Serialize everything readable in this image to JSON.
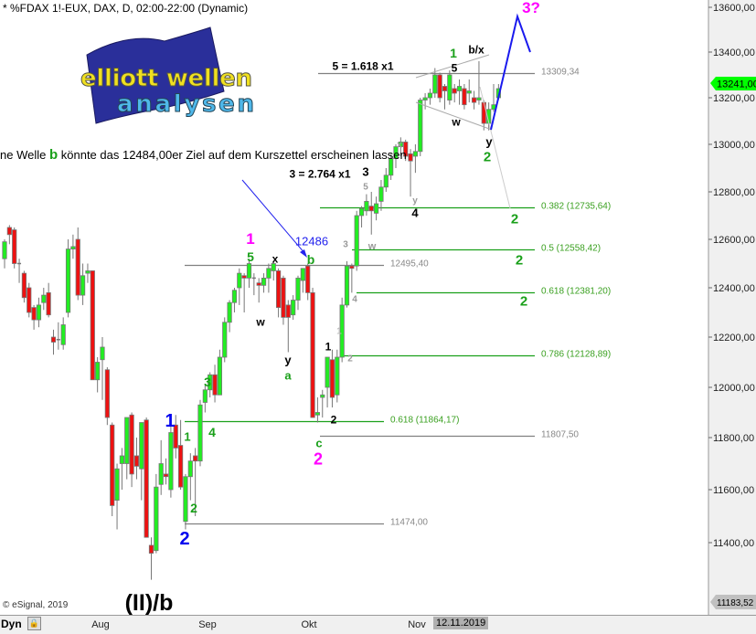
{
  "header": {
    "title": "* %FDAX 1!-EUX, DAX, D, 02:00-22:00 (Dynamic)"
  },
  "logo": {
    "line1": "elliott wellen",
    "line2": "analysen"
  },
  "note": {
    "prefix": "ne Welle ",
    "wave": "b",
    "suffix": " könnte das 12484,00er Ziel auf dem Kurszettel erscheinen lassen"
  },
  "footer": {
    "copyright": "© eSignal, 2019",
    "dyn": "Dyn",
    "current_date": "12.11.2019"
  },
  "colors": {
    "up": "#22ee22",
    "down": "#ee1111",
    "fib": "#1aa01a",
    "level": "#808080",
    "projection": "#1a1aee",
    "last_price": "#00ff00"
  },
  "chart_data": {
    "type": "candlestick",
    "title": "* %FDAX 1!-EUX, DAX, D, 02:00-22:00 (Dynamic)",
    "x_ticks": [
      "Aug",
      "Sep",
      "Okt",
      "Nov"
    ],
    "y_ticks": [
      "13600,00",
      "13400,00",
      "13200,00",
      "13000,00",
      "12800,00",
      "12600,00",
      "12400,00",
      "12200,00",
      "12000,00",
      "11800,00",
      "11600,00",
      "11400,00"
    ],
    "ylim": [
      11183.52,
      13640
    ],
    "last_price": "13241,00",
    "low_price_tag": "11183,52",
    "candles": [
      [
        12520,
        12600,
        12480,
        12590
      ],
      [
        12650,
        12660,
        12580,
        12620
      ],
      [
        12640,
        12650,
        12480,
        12500
      ],
      [
        12500,
        12520,
        12420,
        12500
      ],
      [
        12460,
        12470,
        12340,
        12360
      ],
      [
        12400,
        12420,
        12280,
        12300
      ],
      [
        12320,
        12330,
        12230,
        12270
      ],
      [
        12270,
        12360,
        12240,
        12330
      ],
      [
        12340,
        12400,
        12310,
        12370
      ],
      [
        12380,
        12420,
        12280,
        12290
      ],
      [
        12200,
        12230,
        12130,
        12180
      ],
      [
        12190,
        12260,
        12150,
        12190
      ],
      [
        12170,
        12280,
        12150,
        12250
      ],
      [
        12300,
        12600,
        12280,
        12560
      ],
      [
        12560,
        12620,
        12520,
        12570
      ],
      [
        12600,
        12650,
        12350,
        12370
      ],
      [
        12370,
        12500,
        12330,
        12450
      ],
      [
        12460,
        12500,
        12420,
        12470
      ],
      [
        12470,
        12470,
        12030,
        12030
      ],
      [
        12030,
        12120,
        11980,
        12100
      ],
      [
        12110,
        12200,
        11950,
        12160
      ],
      [
        12070,
        12080,
        11850,
        11880
      ],
      [
        11850,
        11860,
        11500,
        11540
      ],
      [
        11560,
        11700,
        11450,
        11680
      ],
      [
        11700,
        11760,
        11600,
        11730
      ],
      [
        11700,
        11880,
        11640,
        11880
      ],
      [
        11890,
        11900,
        11610,
        11660
      ],
      [
        11730,
        11800,
        11640,
        11690
      ],
      [
        11680,
        11860,
        11560,
        11860
      ],
      [
        11870,
        11880,
        11420,
        11420
      ],
      [
        11390,
        11420,
        11260,
        11360
      ],
      [
        11370,
        11660,
        11360,
        11610
      ],
      [
        11620,
        11790,
        11580,
        11700
      ],
      [
        11660,
        11720,
        11620,
        11650
      ],
      [
        11600,
        11850,
        11570,
        11820
      ],
      [
        11850,
        11890,
        11720,
        11760
      ],
      [
        11770,
        11870,
        11600,
        11610
      ],
      [
        11480,
        11660,
        11450,
        11650
      ],
      [
        11650,
        11740,
        11560,
        11710
      ],
      [
        11730,
        11760,
        11500,
        11710
      ],
      [
        11710,
        11950,
        11690,
        11930
      ],
      [
        11940,
        12010,
        11900,
        11990
      ],
      [
        11990,
        12060,
        11960,
        12050
      ],
      [
        12050,
        12090,
        11940,
        11970
      ],
      [
        11970,
        12150,
        11970,
        12120
      ],
      [
        12120,
        12280,
        12100,
        12260
      ],
      [
        12260,
        12350,
        12220,
        12340
      ],
      [
        12340,
        12400,
        12300,
        12390
      ],
      [
        12400,
        12480,
        12330,
        12460
      ],
      [
        12450,
        12460,
        12300,
        12440
      ],
      [
        12440,
        12520,
        12400,
        12500
      ],
      [
        12440,
        12460,
        12370,
        12440
      ],
      [
        12420,
        12440,
        12340,
        12410
      ],
      [
        12410,
        12460,
        12380,
        12440
      ],
      [
        12440,
        12500,
        12380,
        12480
      ],
      [
        12470,
        12510,
        12430,
        12500
      ],
      [
        12470,
        12480,
        12280,
        12320
      ],
      [
        12440,
        12450,
        12250,
        12280
      ],
      [
        12330,
        12350,
        12140,
        12280
      ],
      [
        12290,
        12370,
        12270,
        12350
      ],
      [
        12350,
        12450,
        12310,
        12440
      ],
      [
        12430,
        12480,
        12380,
        12480
      ],
      [
        12490,
        12500,
        12350,
        12380
      ],
      [
        12380,
        12400,
        11880,
        11880
      ],
      [
        11890,
        11960,
        11860,
        11900
      ],
      [
        11960,
        11990,
        11880,
        11970
      ],
      [
        12000,
        12110,
        11920,
        12120
      ],
      [
        12110,
        12150,
        11920,
        11960
      ],
      [
        11970,
        12150,
        11940,
        12120
      ],
      [
        12120,
        12360,
        12100,
        12330
      ],
      [
        12330,
        12510,
        12320,
        12490
      ],
      [
        12490,
        12500,
        12380,
        12480
      ],
      [
        12490,
        12720,
        12470,
        12700
      ],
      [
        12700,
        12740,
        12650,
        12730
      ],
      [
        12720,
        12790,
        12700,
        12760
      ],
      [
        12740,
        12800,
        12620,
        12720
      ],
      [
        12710,
        12780,
        12680,
        12750
      ],
      [
        12760,
        12850,
        12720,
        12820
      ],
      [
        12820,
        12900,
        12800,
        12870
      ],
      [
        12870,
        12960,
        12850,
        12940
      ],
      [
        12940,
        13000,
        12900,
        12990
      ],
      [
        12990,
        13030,
        12950,
        13010
      ],
      [
        13010,
        13020,
        12930,
        12950
      ],
      [
        12960,
        12980,
        12780,
        12930
      ],
      [
        12950,
        13000,
        12880,
        12970
      ],
      [
        12970,
        13200,
        12950,
        13190
      ],
      [
        13190,
        13220,
        13150,
        13200
      ],
      [
        13200,
        13240,
        13170,
        13220
      ],
      [
        13220,
        13330,
        13200,
        13300
      ],
      [
        13300,
        13310,
        13180,
        13200
      ],
      [
        13250,
        13260,
        13150,
        13230
      ],
      [
        13190,
        13320,
        13170,
        13300
      ],
      [
        13240,
        13260,
        13180,
        13220
      ],
      [
        13230,
        13280,
        13170,
        13250
      ],
      [
        13240,
        13260,
        13150,
        13170
      ],
      [
        13220,
        13280,
        13180,
        13230
      ],
      [
        13200,
        13230,
        13150,
        13180
      ],
      [
        13190,
        13360,
        13170,
        13200
      ],
      [
        13180,
        13190,
        13060,
        13090
      ],
      [
        13090,
        13180,
        13060,
        13150
      ],
      [
        13150,
        13260,
        13140,
        13170
      ],
      [
        13200,
        13260,
        13190,
        13240
      ]
    ],
    "levels": [
      {
        "price": 13309.34,
        "label": "13309,34",
        "kind": "level"
      },
      {
        "price": 12735.64,
        "label": "0.382 (12735,64)",
        "kind": "fib"
      },
      {
        "price": 12558.42,
        "label": "0.5 (12558,42)",
        "kind": "fib"
      },
      {
        "price": 12495.4,
        "label": "12495,40",
        "kind": "level"
      },
      {
        "price": 12381.2,
        "label": "0.618 (12381,20)",
        "kind": "fib"
      },
      {
        "price": 12128.89,
        "label": "0.786 (12128,89)",
        "kind": "fib"
      },
      {
        "price": 11864.17,
        "label": "0.618 (11864,17)",
        "kind": "fib"
      },
      {
        "price": 11807.5,
        "label": "11807,50",
        "kind": "level"
      },
      {
        "price": 11474.0,
        "label": "11474,00",
        "kind": "level"
      }
    ],
    "annotations": [
      {
        "text": "3?",
        "color": "#ff00ff"
      },
      {
        "text": "1",
        "color": "#1aa01a"
      },
      {
        "text": "b/x",
        "color": "#000"
      },
      {
        "text": "5 = 1.618 x1",
        "color": "#000"
      },
      {
        "text": "5",
        "color": "#000"
      },
      {
        "text": "w",
        "color": "#000"
      },
      {
        "text": "y",
        "color": "#000"
      },
      {
        "text": "2",
        "color": "#1aa01a"
      },
      {
        "text": "3 = 2.764 x1",
        "color": "#000"
      },
      {
        "text": "3",
        "color": "#000"
      },
      {
        "text": "5",
        "color": "#999"
      },
      {
        "text": "x",
        "color": "#999"
      },
      {
        "text": "y",
        "color": "#999"
      },
      {
        "text": "4",
        "color": "#000"
      },
      {
        "text": "2",
        "color": "#1aa01a"
      },
      {
        "text": "2",
        "color": "#1aa01a"
      },
      {
        "text": "2",
        "color": "#1aa01a"
      },
      {
        "text": "1",
        "color": "#ff00ff"
      },
      {
        "text": "5",
        "color": "#1aa01a"
      },
      {
        "text": "x",
        "color": "#000"
      },
      {
        "text": "12486",
        "color": "#2222ee"
      },
      {
        "text": "b",
        "color": "#1aa01a"
      },
      {
        "text": "3",
        "color": "#999"
      },
      {
        "text": "w",
        "color": "#999"
      },
      {
        "text": "4",
        "color": "#999"
      },
      {
        "text": "w",
        "color": "#000"
      },
      {
        "text": "y",
        "color": "#000"
      },
      {
        "text": "a",
        "color": "#1aa01a"
      },
      {
        "text": "1",
        "color": "#bbb"
      },
      {
        "text": "1",
        "color": "#000"
      },
      {
        "text": "2",
        "color": "#999"
      },
      {
        "text": "2",
        "color": "#000"
      },
      {
        "text": "c",
        "color": "#1aa01a"
      },
      {
        "text": "2",
        "color": "#ff00ff"
      },
      {
        "text": "3",
        "color": "#1aa01a"
      },
      {
        "text": "4",
        "color": "#1aa01a"
      },
      {
        "text": "1",
        "color": "#0000ee"
      },
      {
        "text": "1",
        "color": "#1aa01a"
      },
      {
        "text": "2",
        "color": "#1aa01a"
      },
      {
        "text": "2",
        "color": "#0000ee"
      },
      {
        "text": "(II)/b",
        "color": "#000"
      }
    ]
  }
}
